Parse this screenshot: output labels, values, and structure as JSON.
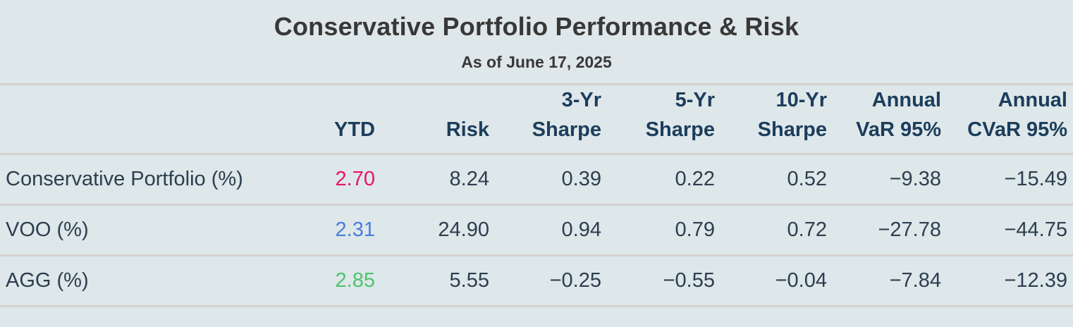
{
  "title": "Conservative Portfolio Performance & Risk",
  "subtitle": "As of June 17, 2025",
  "colors": {
    "background": "#dee7e9",
    "divider": "#d2d2d0",
    "title_text": "#383838",
    "header_text": "#1c3d5c",
    "body_text": "#2c3e50",
    "ytd_conservative": "#e81464",
    "ytd_voo": "#4a7ddd",
    "ytd_agg": "#4dc36f"
  },
  "table": {
    "headers": [
      "",
      "YTD",
      "Risk",
      "3-Yr Sharpe",
      "5-Yr Sharpe",
      "10-Yr Sharpe",
      "Annual VaR 95%",
      "Annual CVaR 95%"
    ],
    "rows": [
      {
        "label": "Conservative Portfolio (%)",
        "ytd": "2.70",
        "ytd_color": "#e81464",
        "risk": "8.24",
        "sharpe_3yr": "0.39",
        "sharpe_5yr": "0.22",
        "sharpe_10yr": "0.52",
        "var_95": "−9.38",
        "cvar_95": "−15.49"
      },
      {
        "label": "VOO (%)",
        "ytd": "2.31",
        "ytd_color": "#4a7ddd",
        "risk": "24.90",
        "sharpe_3yr": "0.94",
        "sharpe_5yr": "0.79",
        "sharpe_10yr": "0.72",
        "var_95": "−27.78",
        "cvar_95": "−44.75"
      },
      {
        "label": "AGG (%)",
        "ytd": "2.85",
        "ytd_color": "#4dc36f",
        "risk": "5.55",
        "sharpe_3yr": "−0.25",
        "sharpe_5yr": "−0.55",
        "sharpe_10yr": "−0.04",
        "var_95": "−7.84",
        "cvar_95": "−12.39"
      }
    ]
  },
  "chart_data": {
    "type": "table",
    "title": "Conservative Portfolio Performance & Risk",
    "subtitle": "As of June 17, 2025",
    "columns": [
      "YTD",
      "Risk",
      "3-Yr Sharpe",
      "5-Yr Sharpe",
      "10-Yr Sharpe",
      "Annual VaR 95%",
      "Annual CVaR 95%"
    ],
    "rows": [
      {
        "name": "Conservative Portfolio (%)",
        "values": [
          2.7,
          8.24,
          0.39,
          0.22,
          0.52,
          -9.38,
          -15.49
        ]
      },
      {
        "name": "VOO (%)",
        "values": [
          2.31,
          24.9,
          0.94,
          0.79,
          0.72,
          -27.78,
          -44.75
        ]
      },
      {
        "name": "AGG (%)",
        "values": [
          2.85,
          5.55,
          -0.25,
          -0.55,
          -0.04,
          -7.84,
          -12.39
        ]
      }
    ],
    "notes": "YTD values color-coded per row: pink #e81464, blue #4a7ddd, green #4dc36f"
  }
}
